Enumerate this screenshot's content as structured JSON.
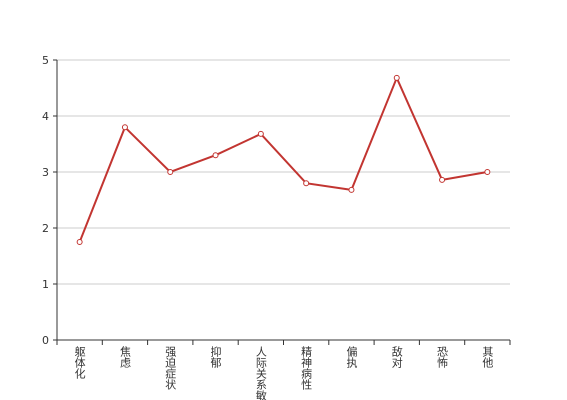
{
  "chart_data": {
    "type": "line",
    "categories": [
      "躯体化",
      "焦虑",
      "强迫症状",
      "抑郁",
      "人际关系敏感",
      "精神病性",
      "偏执",
      "敌对",
      "恐怖",
      "其他"
    ],
    "series": [
      {
        "color": "#c23531",
        "values": [
          1.75,
          3.8,
          3.0,
          3.3,
          3.68,
          2.8,
          2.68,
          4.68,
          2.86,
          3.0
        ]
      }
    ],
    "ylim": [
      0,
      5
    ],
    "yticks": [
      0,
      1,
      2,
      3,
      4,
      5
    ],
    "grid": true
  }
}
